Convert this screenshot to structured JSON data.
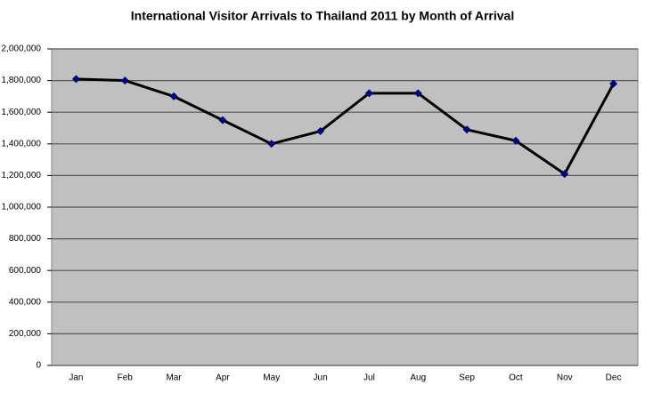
{
  "chart_data": {
    "type": "line",
    "title": "International Visitor Arrivals to Thailand 2011 by Month of Arrival",
    "categories": [
      "Jan",
      "Feb",
      "Mar",
      "Apr",
      "May",
      "Jun",
      "Jul",
      "Aug",
      "Sep",
      "Oct",
      "Nov",
      "Dec"
    ],
    "series": [
      {
        "color": "#000000",
        "marker_color": "#000080",
        "values": [
          1810000,
          1800000,
          1700000,
          1550000,
          1400000,
          1480000,
          1720000,
          1720000,
          1490000,
          1420000,
          1210000,
          1780000
        ]
      }
    ],
    "ylim": [
      0,
      2000000
    ],
    "yticks": [
      0,
      {
        "value": 200000,
        "label": "200,000"
      },
      {
        "value": 400000,
        "label": "400,000"
      },
      {
        "value": 600000,
        "label": "600,000"
      },
      {
        "value": 800000,
        "label": "800,000"
      },
      {
        "value": 1000000,
        "label": "1,000,000"
      },
      {
        "value": 1200000,
        "label": "1,200,000"
      },
      {
        "value": 1400000,
        "label": "1,400,000"
      },
      {
        "value": 1600000,
        "label": "1,600,000"
      },
      {
        "value": 1800000,
        "label": "1,800,000"
      },
      {
        "value": 2000000,
        "label": "2,000,000"
      }
    ],
    "grid": true
  }
}
